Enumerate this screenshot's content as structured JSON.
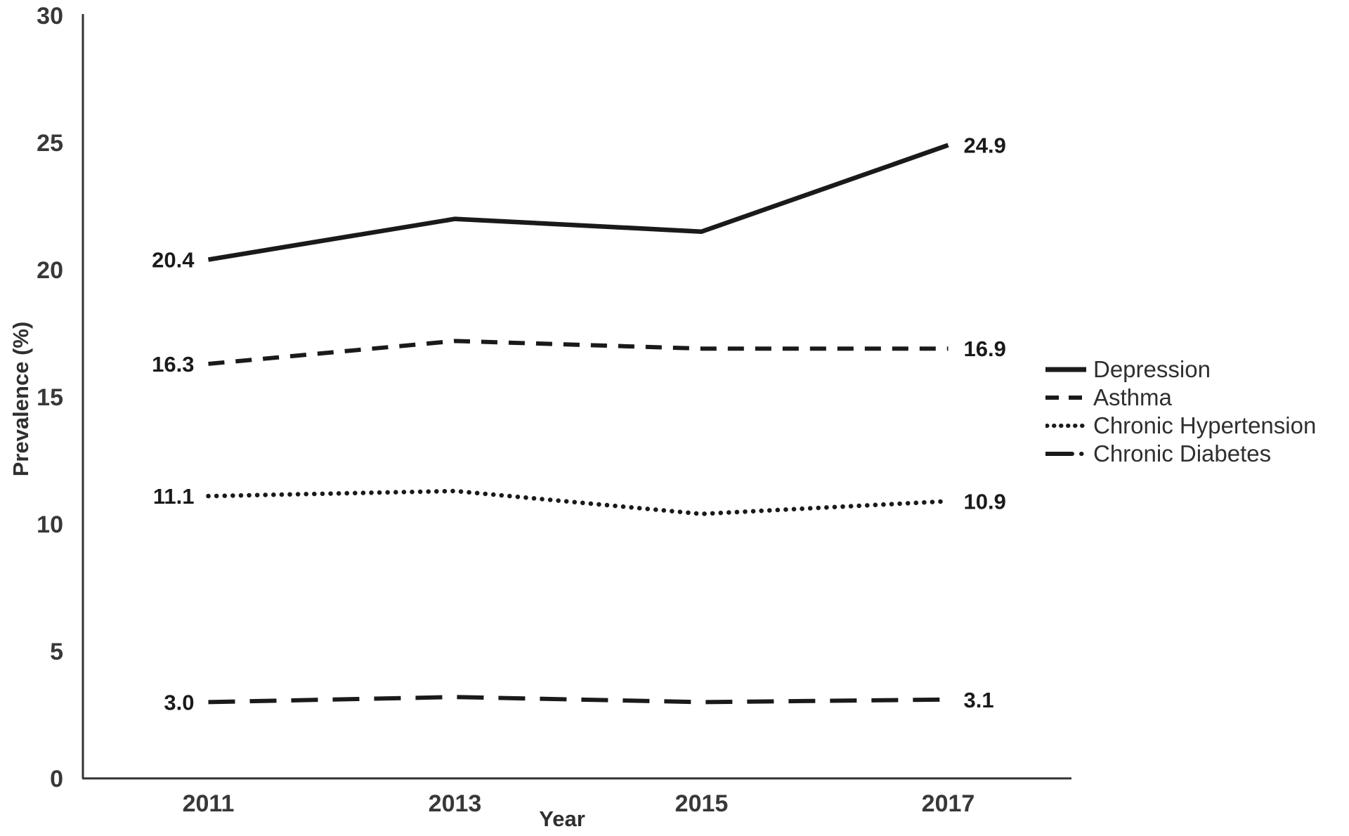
{
  "figure": {
    "background": "#ffffff",
    "axis_color": "#333333",
    "line_color": "#1a1a1a",
    "text_color": "#383838"
  },
  "chart_data": {
    "type": "line",
    "title": "",
    "xlabel": "Year",
    "ylabel": "Prevalence (%)",
    "categories": [
      "2011",
      "2013",
      "2015",
      "2017"
    ],
    "ylim": [
      0,
      30
    ],
    "yticks": [
      0,
      5,
      10,
      15,
      20,
      25,
      30
    ],
    "grid": false,
    "legend_position": "right",
    "series": [
      {
        "name": "Depression",
        "slug": "depression",
        "style": "solid",
        "values": [
          20.4,
          22.0,
          21.5,
          24.9
        ],
        "first_label": "20.4",
        "last_label": "24.9"
      },
      {
        "name": "Asthma",
        "slug": "asthma",
        "style": "dashed",
        "values": [
          16.3,
          17.2,
          16.9,
          16.9
        ],
        "first_label": "16.3",
        "last_label": "16.9"
      },
      {
        "name": "Chronic Hypertension",
        "slug": "chronic-hypertension",
        "style": "dotted",
        "values": [
          11.1,
          11.3,
          10.4,
          10.9
        ],
        "first_label": "11.1",
        "last_label": "10.9"
      },
      {
        "name": "Chronic Diabetes",
        "slug": "chronic-diabetes",
        "style": "long-dash",
        "values": [
          3.0,
          3.2,
          3.0,
          3.1
        ],
        "first_label": "3.0",
        "last_label": "3.1"
      }
    ]
  }
}
